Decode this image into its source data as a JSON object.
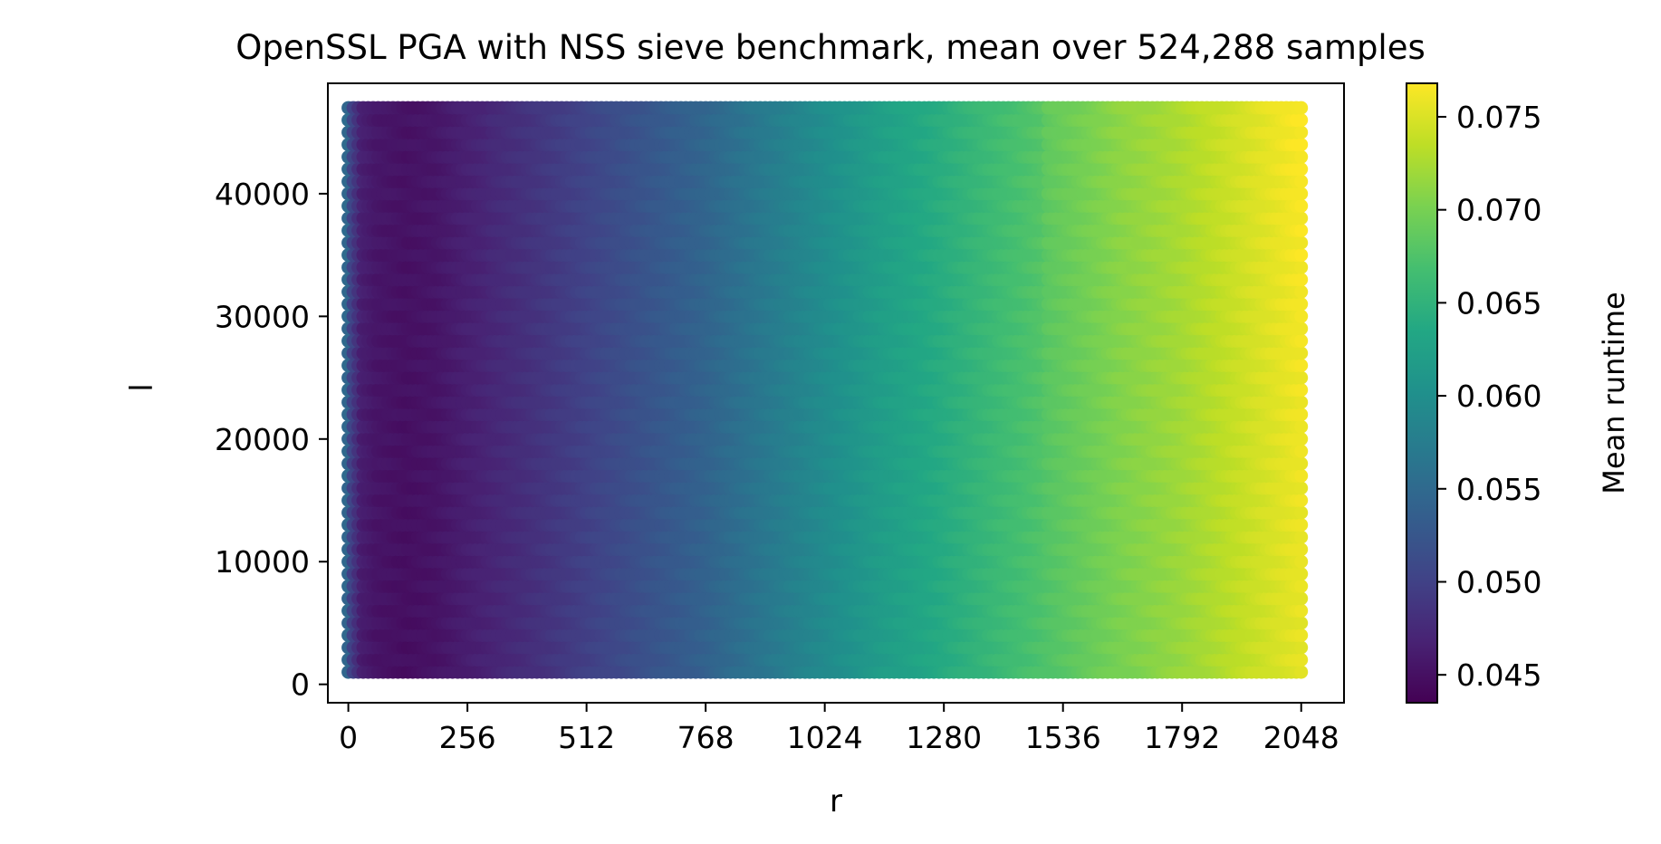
{
  "chart_data": {
    "type": "scatter",
    "title": "OpenSSL PGA with NSS sieve benchmark, mean over 524,288 samples",
    "xlabel": "r",
    "ylabel": "l",
    "xlim": [
      -44,
      2140
    ],
    "ylim": [
      -1500,
      49000
    ],
    "xticks": [
      0,
      256,
      512,
      768,
      1024,
      1280,
      1536,
      1792,
      2048
    ],
    "yticks": [
      0,
      10000,
      20000,
      30000,
      40000
    ],
    "x_range": [
      0,
      2048
    ],
    "y_range": [
      1000,
      47000
    ],
    "colorbar": {
      "label": "Mean runtime",
      "range": [
        0.0435,
        0.0768
      ],
      "ticks": [
        0.045,
        0.05,
        0.055,
        0.06,
        0.065,
        0.07,
        0.075
      ],
      "tick_labels": [
        "0.045",
        "0.050",
        "0.055",
        "0.060",
        "0.065",
        "0.070",
        "0.075"
      ],
      "colormap": "viridis"
    },
    "profile_r": [
      0,
      8,
      32,
      64,
      128,
      192,
      256,
      384,
      512,
      640,
      768,
      896,
      1024,
      1152,
      1280,
      1408,
      1536,
      1664,
      1792,
      1920,
      2048
    ],
    "mean_runtime_by_r": [
      0.0545,
      0.0505,
      0.0462,
      0.0453,
      0.0448,
      0.0452,
      0.0462,
      0.0478,
      0.0497,
      0.0518,
      0.0538,
      0.0565,
      0.0592,
      0.0618,
      0.0638,
      0.066,
      0.068,
      0.07,
      0.0715,
      0.0735,
      0.0755
    ],
    "grid": false,
    "legend": "none"
  }
}
